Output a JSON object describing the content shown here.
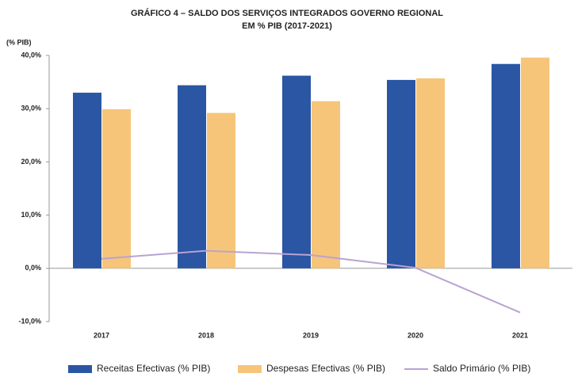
{
  "chart_data": {
    "type": "bar",
    "title": "GRÁFICO 4 – SALDO DOS SERVIÇOS INTEGRADOS GOVERNO REGIONAL",
    "subtitle": "EM % PIB (2017-2021)",
    "y_label": "(% PIB)",
    "categories": [
      "2017",
      "2018",
      "2019",
      "2020",
      "2021"
    ],
    "series": [
      {
        "name": "Receitas Efectivas (% PIB)",
        "type": "bar",
        "color": "#2a56a3",
        "values": [
          33.0,
          34.4,
          36.2,
          35.4,
          38.4
        ]
      },
      {
        "name": "Despesas Efectivas (% PIB)",
        "type": "bar",
        "color": "#f6c57a",
        "values": [
          29.9,
          29.2,
          31.4,
          35.7,
          39.6
        ]
      },
      {
        "name": "Saldo Primário (% PIB)",
        "type": "line",
        "color": "#b9a2d4",
        "values": [
          1.8,
          3.3,
          2.5,
          0.1,
          -8.3
        ]
      }
    ],
    "ylim": [
      -10,
      40
    ],
    "yticks": [
      {
        "value": -10,
        "label": "-10,0%"
      },
      {
        "value": 0,
        "label": "0,0%"
      },
      {
        "value": 10,
        "label": "10,0%"
      },
      {
        "value": 20,
        "label": "20,0%"
      },
      {
        "value": 30,
        "label": "30,0%"
      },
      {
        "value": 40,
        "label": "40,0%"
      }
    ],
    "grid": false,
    "legend": "bottom"
  }
}
